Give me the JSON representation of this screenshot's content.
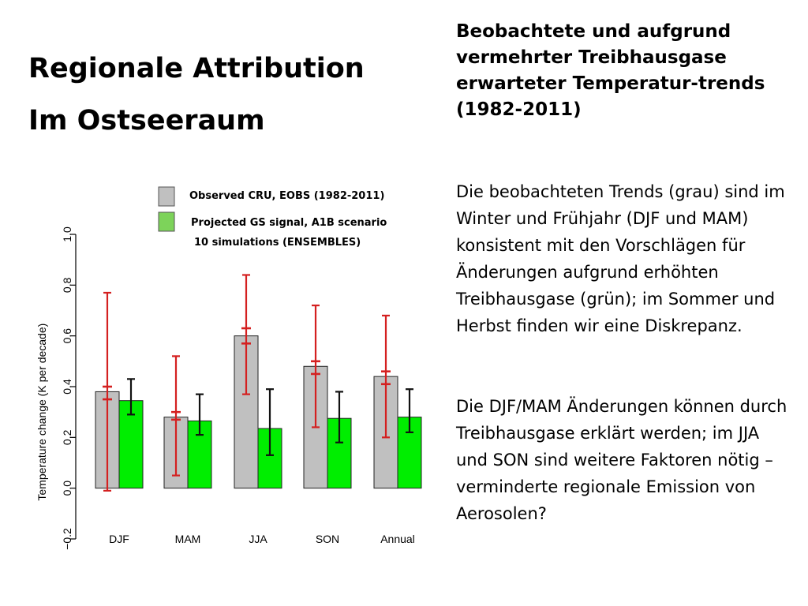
{
  "slide": {
    "title_line1": "Regionale Attribution",
    "title_line2": "Im Ostseeraum",
    "right_heading": "Beobachtete und aufgrund vermehrter Treibhausgase erwarteter Temperatur-trends (1982-2011)",
    "paragraph1": "Die beobachteten Trends (grau) sind im Winter und Frühjahr (DJF und MAM) konsistent mit den Vorschlägen für Änderungen aufgrund erhöhten Treibhausgase (grün); im Sommer und Herbst finden wir eine Diskrepanz.",
    "paragraph2": "Die DJF/MAM Änderungen können durch Treibhausgase erklärt werden; im JJA und SON sind weitere Faktoren nötig – verminderte regionale Emission von Aerosolen?"
  },
  "chart_data": {
    "type": "bar",
    "categories": [
      "DJF",
      "MAM",
      "JJA",
      "SON",
      "Annual"
    ],
    "ylabel": "Temperature change (K per decade)",
    "xlabel": "",
    "ylim": [
      -0.2,
      1.0
    ],
    "yticks": [
      "−0.2",
      "0.0",
      "0.2",
      "0.4",
      "0.6",
      "0.8",
      "1.0"
    ],
    "ytick_values": [
      -0.2,
      0.0,
      0.2,
      0.4,
      0.6,
      0.8,
      1.0
    ],
    "grid": false,
    "legend_position": "top",
    "series": [
      {
        "name": "Observed CRU, EOBS (1982-2011)",
        "color": "#c0c0c0",
        "values": [
          0.38,
          0.28,
          0.6,
          0.48,
          0.44
        ],
        "error_color": "#d42020",
        "error_outer": [
          [
            -0.01,
            0.77
          ],
          [
            0.05,
            0.52
          ],
          [
            0.37,
            0.84
          ],
          [
            0.24,
            0.72
          ],
          [
            0.2,
            0.68
          ]
        ],
        "error_inner": [
          [
            0.35,
            0.4
          ],
          [
            0.27,
            0.3
          ],
          [
            0.57,
            0.63
          ],
          [
            0.45,
            0.5
          ],
          [
            0.41,
            0.46
          ]
        ]
      },
      {
        "name": "Projected GS signal, A1B scenario",
        "name_line2": "10 simulations (ENSEMBLES)",
        "color": "#00ee00",
        "legend_color": "#7dd35a",
        "values": [
          0.345,
          0.265,
          0.235,
          0.275,
          0.28
        ],
        "error_color": "#111111",
        "error_outer": [
          [
            0.29,
            0.43
          ],
          [
            0.21,
            0.37
          ],
          [
            0.13,
            0.39
          ],
          [
            0.18,
            0.38
          ],
          [
            0.22,
            0.39
          ]
        ]
      }
    ]
  }
}
